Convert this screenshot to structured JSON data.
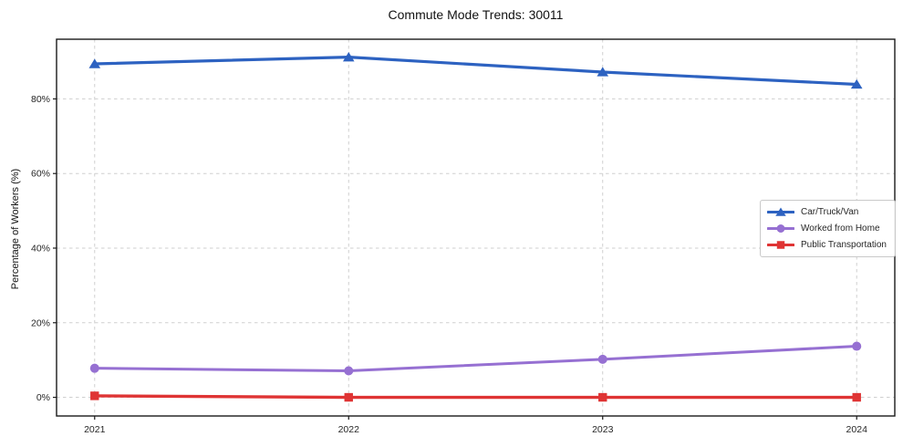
{
  "chart_data": {
    "type": "line",
    "title": "Commute Mode Trends: 30011",
    "ylabel": "Percentage of Workers (%)",
    "xlabel": "",
    "x": [
      2021,
      2022,
      2023,
      2024
    ],
    "x_tick_labels": [
      "2021",
      "2022",
      "2023",
      "2024"
    ],
    "series": [
      {
        "name": "Car/Truck/Van",
        "color": "#2d62c1",
        "marker": "triangle",
        "line_width": 3.2,
        "values": [
          89.4,
          91.2,
          87.2,
          83.9
        ]
      },
      {
        "name": "Worked from Home",
        "color": "#9670d2",
        "marker": "circle",
        "line_width": 3.0,
        "values": [
          7.8,
          7.1,
          10.2,
          13.7
        ]
      },
      {
        "name": "Public Transportation",
        "color": "#df3434",
        "marker": "square",
        "line_width": 3.4,
        "values": [
          0.4,
          0.0,
          0.0,
          0.0
        ]
      }
    ],
    "xlim": [
      2020.85,
      2024.15
    ],
    "ylim": [
      -5,
      96
    ],
    "yticks": [
      0,
      20,
      40,
      60,
      80
    ],
    "ytick_labels": [
      "0%",
      "20%",
      "40%",
      "60%",
      "80%"
    ],
    "grid": true,
    "legend_position": "center right",
    "axis_color": "#1a1a1a",
    "grid_color": "#cfcfcf",
    "background_color": "#ffffff"
  }
}
